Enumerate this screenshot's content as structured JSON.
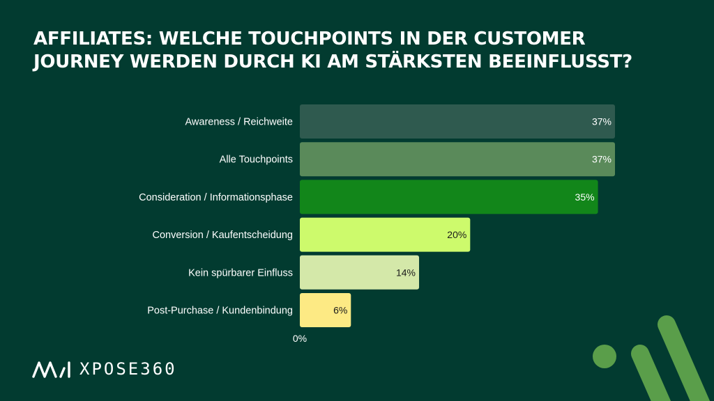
{
  "colors": {
    "background": "#023b30",
    "label_text": "#ffffff",
    "accent": "#5a9e4a"
  },
  "chart_data": {
    "type": "bar",
    "orientation": "horizontal",
    "title": "AFFILIATES: WELCHE TOUCHPOINTS IN DER CUSTOMER JOURNEY WERDEN DURCH KI AM STÄRKSTEN BEEINFLUSST?",
    "categories": [
      "Awareness / Reichweite",
      "Alle Touchpoints",
      "Consideration / Informationsphase",
      "Conversion / Kaufentscheidung",
      "Kein spürbarer Einfluss",
      "Post-Purchase / Kundenbindung"
    ],
    "values": [
      37,
      37,
      35,
      20,
      14,
      6
    ],
    "value_labels": [
      "37%",
      "37%",
      "35%",
      "20%",
      "14%",
      "6%"
    ],
    "bar_colors": [
      "#2f5a4f",
      "#5a8a5a",
      "#12861a",
      "#cdfa6c",
      "#d4e8a9",
      "#fdea84"
    ],
    "value_label_colors": [
      "#ffffff",
      "#ffffff",
      "#ffffff",
      "#1a1a1a",
      "#1a1a1a",
      "#1a1a1a"
    ],
    "axis_tick_label": "0%",
    "xlim": [
      0,
      37
    ],
    "grid": false,
    "legend": "none"
  },
  "logo": {
    "text": "XPOSE360",
    "mark": "ai-logo-mark"
  },
  "decoration": {
    "icon": "stripes-and-dot-decoration"
  }
}
